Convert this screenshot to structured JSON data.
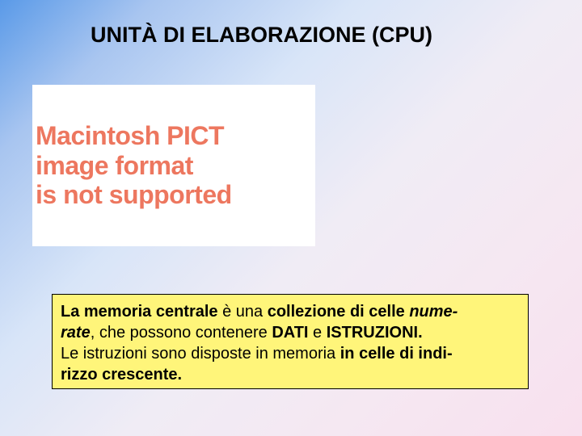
{
  "slide": {
    "title": "UNITÀ DI ELABORAZIONE (CPU)",
    "title_fontsize": 27,
    "title_color": "#000000",
    "background_gradient": [
      "#5a9ae8",
      "#a8c5f0",
      "#d8e5f8",
      "#f0ecf5",
      "#f5e8f2",
      "#f8e0ee"
    ]
  },
  "image_placeholder": {
    "line1": "Macintosh PICT",
    "line2": "image format",
    "line3": "is not supported",
    "text_color": "#ed775f",
    "background_color": "#ffffff",
    "fontsize": 32
  },
  "textbox": {
    "background_color": "#fff57a",
    "border_color": "#000000",
    "fontsize": 20,
    "text_color": "#000000",
    "t1": "La memoria centrale",
    "t2": " è una ",
    "t3": "collezione di celle ",
    "t4": "nume-",
    "t5": "rate",
    "t6": ", che possono contenere ",
    "t7": "DATI",
    "t8": " e ",
    "t9": "ISTRUZIONI.",
    "t10": "Le istruzioni sono disposte in memoria ",
    "t11": "in celle di indi-",
    "t12": "rizzo crescente."
  }
}
